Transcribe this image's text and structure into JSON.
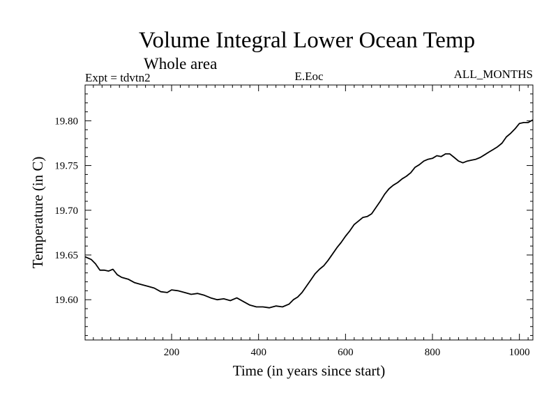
{
  "chart_data": {
    "type": "line",
    "title": "Volume Integral Lower Ocean Temp",
    "subtitle": "Whole area",
    "header_left": "Expt = tdvtn2",
    "header_center": "E.Eoc",
    "header_right": "ALL_MONTHS",
    "xlabel": "Time (in years since start)",
    "ylabel": "Temperature (in C)",
    "xlim": [
      1,
      1031
    ],
    "ylim": [
      19.555,
      19.84
    ],
    "xticks": [
      200,
      400,
      600,
      800,
      1000
    ],
    "yticks": [
      19.6,
      19.65,
      19.7,
      19.75,
      19.8
    ],
    "ytick_labels": [
      "19.60",
      "19.65",
      "19.70",
      "19.75",
      "19.80"
    ],
    "series": [
      {
        "name": "tdvtn2",
        "x": [
          1,
          15,
          25,
          35,
          45,
          55,
          65,
          75,
          85,
          100,
          115,
          130,
          145,
          160,
          175,
          190,
          200,
          215,
          230,
          245,
          260,
          275,
          290,
          305,
          320,
          335,
          350,
          365,
          380,
          395,
          410,
          425,
          440,
          455,
          470,
          480,
          490,
          500,
          510,
          520,
          530,
          540,
          550,
          560,
          570,
          580,
          590,
          600,
          610,
          620,
          630,
          640,
          650,
          660,
          670,
          680,
          690,
          700,
          710,
          720,
          730,
          740,
          750,
          760,
          770,
          780,
          790,
          800,
          810,
          820,
          830,
          840,
          850,
          860,
          870,
          880,
          890,
          900,
          910,
          920,
          930,
          940,
          950,
          960,
          970,
          980,
          990,
          1000,
          1010,
          1020,
          1031
        ],
        "y": [
          19.648,
          19.645,
          19.64,
          19.633,
          19.633,
          19.632,
          19.634,
          19.628,
          19.625,
          19.623,
          19.619,
          19.617,
          19.615,
          19.613,
          19.609,
          19.608,
          19.611,
          19.61,
          19.608,
          19.606,
          19.607,
          19.605,
          19.602,
          19.6,
          19.601,
          19.599,
          19.602,
          19.598,
          19.594,
          19.592,
          19.592,
          19.591,
          19.593,
          19.592,
          19.595,
          19.6,
          19.603,
          19.608,
          19.615,
          19.622,
          19.629,
          19.634,
          19.638,
          19.644,
          19.651,
          19.658,
          19.664,
          19.671,
          19.677,
          19.684,
          19.688,
          19.692,
          19.693,
          19.696,
          19.703,
          19.71,
          19.718,
          19.724,
          19.728,
          19.731,
          19.735,
          19.738,
          19.742,
          19.748,
          19.751,
          19.755,
          19.757,
          19.758,
          19.761,
          19.76,
          19.763,
          19.763,
          19.759,
          19.755,
          19.753,
          19.755,
          19.756,
          19.757,
          19.759,
          19.762,
          19.765,
          19.768,
          19.771,
          19.775,
          19.782,
          19.786,
          19.791,
          19.797,
          19.798,
          19.798,
          19.801
        ]
      }
    ]
  }
}
